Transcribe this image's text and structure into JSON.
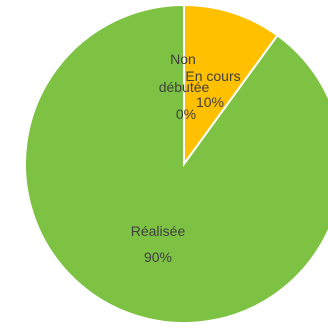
{
  "chart_data": {
    "type": "pie",
    "categories": [
      "Non débutée",
      "En cours",
      "Réalisée"
    ],
    "values": [
      0,
      10,
      90
    ],
    "data_labels": [
      {
        "name": "Non",
        "name2": "débutée",
        "value": "0%"
      },
      {
        "name": "En cours",
        "value": "10%"
      },
      {
        "name": "Réalisée",
        "value": "90%"
      }
    ],
    "colors": [
      "#4472c4",
      "#ffc000",
      "#7dc242"
    ],
    "legend": "none",
    "grid": false
  }
}
